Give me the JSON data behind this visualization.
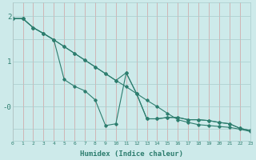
{
  "title": "",
  "xlabel": "Humidex (Indice chaleur)",
  "ylabel": "",
  "bg_color": "#cdeaea",
  "line_color": "#2d7d6e",
  "grid_color_v": "#c0dcdc",
  "grid_color_h": "#a8cccc",
  "x": [
    0,
    1,
    2,
    3,
    4,
    5,
    6,
    7,
    8,
    9,
    10,
    11,
    12,
    13,
    14,
    15,
    16,
    17,
    18,
    19,
    20,
    21,
    22,
    23
  ],
  "line1": [
    1.95,
    1.95,
    1.75,
    1.62,
    1.48,
    1.33,
    1.18,
    1.03,
    0.88,
    0.73,
    0.58,
    0.44,
    0.29,
    0.14,
    0.0,
    -0.15,
    -0.29,
    -0.35,
    -0.4,
    -0.42,
    -0.44,
    -0.46,
    -0.5,
    -0.55
  ],
  "line2": [
    1.95,
    1.95,
    1.75,
    1.62,
    1.48,
    1.33,
    1.18,
    1.03,
    0.88,
    0.73,
    0.58,
    0.75,
    0.29,
    -0.27,
    -0.27,
    -0.24,
    -0.24,
    -0.29,
    -0.29,
    -0.31,
    -0.35,
    -0.38,
    -0.48,
    -0.53
  ],
  "line3": [
    1.95,
    1.95,
    1.75,
    1.62,
    1.48,
    0.6,
    0.45,
    0.35,
    0.15,
    -0.42,
    -0.38,
    0.75,
    0.29,
    -0.27,
    -0.27,
    -0.24,
    -0.24,
    -0.29,
    -0.29,
    -0.31,
    -0.35,
    -0.38,
    -0.48,
    -0.53
  ],
  "yticks": [
    0,
    1,
    2
  ],
  "ytick_labels": [
    "-0",
    "1",
    "2"
  ],
  "xticks": [
    0,
    1,
    2,
    3,
    4,
    5,
    6,
    7,
    8,
    9,
    10,
    11,
    12,
    13,
    14,
    15,
    16,
    17,
    18,
    19,
    20,
    21,
    22,
    23
  ],
  "xlim": [
    0,
    23
  ],
  "ylim": [
    -0.75,
    2.3
  ],
  "figsize": [
    3.2,
    2.0
  ],
  "dpi": 100
}
